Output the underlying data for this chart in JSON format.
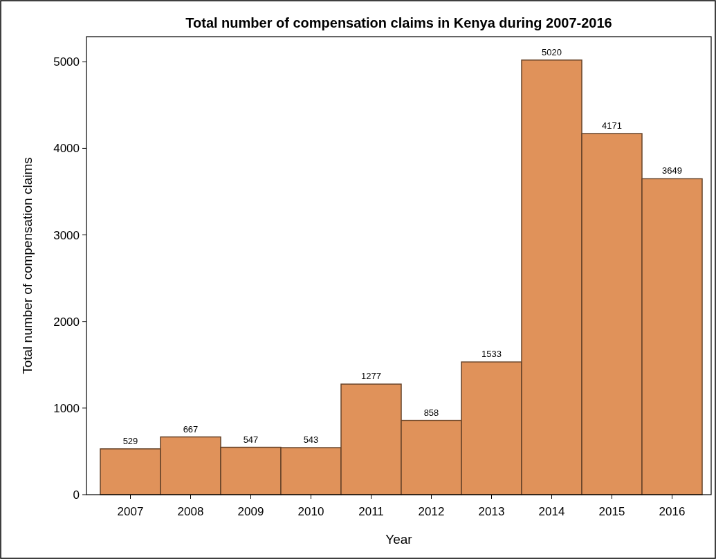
{
  "chart_data": {
    "type": "bar",
    "title": "Total number of compensation claims in Kenya during 2007-2016",
    "xlabel": "Year",
    "ylabel": "Total number of compensation claims",
    "categories": [
      "2007",
      "2008",
      "2009",
      "2010",
      "2011",
      "2012",
      "2013",
      "2014",
      "2015",
      "2016"
    ],
    "values": [
      529,
      667,
      547,
      543,
      1277,
      858,
      1533,
      5020,
      4171,
      3649
    ],
    "color": "#e0925a",
    "ylim": [
      0,
      5290
    ],
    "yticks": [
      0,
      1000,
      2000,
      3000,
      4000,
      5000
    ],
    "data_labels": true,
    "grid": false
  }
}
